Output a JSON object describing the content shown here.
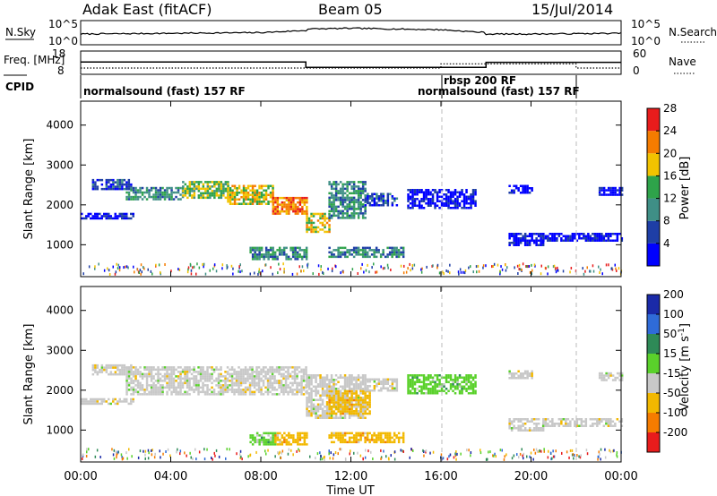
{
  "header": {
    "title": "Adak East (fitACF)",
    "beam": "Beam 05",
    "date": "15/Jul/2014"
  },
  "chart_data": [
    {
      "type": "line",
      "panel": "N.Sky / N.Search",
      "left_label": "N.Sky",
      "right_label": "N.Search",
      "left_ticks": [
        "10^5",
        "10^0"
      ],
      "right_ticks": [
        "10^5",
        "10^0"
      ],
      "x": [
        "00:00",
        "02:00",
        "04:00",
        "06:00",
        "08:00",
        "10:00",
        "12:00",
        "14:00",
        "16:00",
        "18:00",
        "20:00",
        "22:00",
        "24:00"
      ],
      "series": [
        {
          "name": "N.Sky",
          "values_log10": [
            2.0,
            2.1,
            2.2,
            2.3,
            2.4,
            3.0,
            3.2,
            3.0,
            2.8,
            2.0,
            2.0,
            2.1,
            2.2
          ]
        }
      ]
    },
    {
      "type": "line",
      "panel": "Freq / Nave",
      "left_label": "Freq. [MHz]",
      "right_label": "Nave",
      "left_ticks": [
        "18",
        "8"
      ],
      "right_ticks": [
        "60",
        "0"
      ],
      "series": [
        {
          "name": "Freq.",
          "steps": [
            {
              "from": 0.0,
              "to": 10.0,
              "value": 13.4
            },
            {
              "from": 10.0,
              "to": 18.0,
              "value": 10.4
            },
            {
              "from": 18.0,
              "to": 24.0,
              "value": 13.2
            }
          ]
        },
        {
          "name": "Nave",
          "steps": [
            {
              "from": 0.0,
              "to": 10.0,
              "value": 12
            },
            {
              "from": 10.0,
              "to": 16.0,
              "value": 12
            },
            {
              "from": 16.0,
              "to": 18.0,
              "value": 26
            },
            {
              "from": 18.0,
              "to": 22.0,
              "value": 26
            },
            {
              "from": 22.0,
              "to": 24.0,
              "value": 12
            }
          ]
        }
      ]
    },
    {
      "type": "table",
      "panel": "CPID",
      "label": "CPID",
      "segments": [
        {
          "start": 0.0,
          "end": 16.0,
          "text": "normalsound (fast) 157 RF"
        },
        {
          "start": 16.0,
          "end": 22.0,
          "text": "rbsp 200 RF"
        },
        {
          "start": 16.0,
          "end": 22.0,
          "text": "normalsound (fast) 157 RF"
        }
      ]
    },
    {
      "type": "heatmap",
      "panel": "Power",
      "ylabel": "Slant Range [km]",
      "xlabel": "Time UT",
      "xlim": [
        0,
        24
      ],
      "ylim": [
        200,
        4600
      ],
      "yticks": [
        1000,
        2000,
        3000,
        4000
      ],
      "xticks": [
        "00:00",
        "04:00",
        "08:00",
        "12:00",
        "16:00",
        "20:00",
        "00:00"
      ],
      "colorbar": {
        "label": "Power [dB]",
        "ticks": [
          4,
          8,
          12,
          16,
          20,
          24,
          28
        ],
        "colors": [
          "#0000ff",
          "#1e3ea6",
          "#3f8f86",
          "#2ea34a",
          "#f2c300",
          "#f57c00",
          "#e81c1c"
        ]
      },
      "bands": [
        {
          "t0": 0.5,
          "t1": 2.2,
          "r0": 2400,
          "r1": 2650,
          "level": 1
        },
        {
          "t0": 0.0,
          "t1": 2.3,
          "r0": 1650,
          "r1": 1800,
          "level": 0
        },
        {
          "t0": 2.0,
          "t1": 4.5,
          "r0": 2150,
          "r1": 2450,
          "level": 2
        },
        {
          "t0": 4.5,
          "t1": 6.5,
          "r0": 2200,
          "r1": 2600,
          "level": 3
        },
        {
          "t0": 6.5,
          "t1": 8.5,
          "r0": 2000,
          "r1": 2500,
          "level": 4
        },
        {
          "t0": 8.5,
          "t1": 10.0,
          "r0": 1800,
          "r1": 2200,
          "level": 5
        },
        {
          "t0": 10.0,
          "t1": 11.0,
          "r0": 1300,
          "r1": 1800,
          "level": 4
        },
        {
          "t0": 11.0,
          "t1": 12.6,
          "r0": 1700,
          "r1": 2600,
          "level": 2
        },
        {
          "t0": 12.6,
          "t1": 14.0,
          "r0": 2000,
          "r1": 2300,
          "level": 1
        },
        {
          "t0": 7.5,
          "t1": 10.0,
          "r0": 650,
          "r1": 950,
          "level": 2
        },
        {
          "t0": 11.0,
          "t1": 14.3,
          "r0": 700,
          "r1": 950,
          "level": 2
        },
        {
          "t0": 14.5,
          "t1": 17.5,
          "r0": 1900,
          "r1": 2400,
          "level": 0
        },
        {
          "t0": 19.0,
          "t1": 20.5,
          "r0": 1000,
          "r1": 1300,
          "level": 0
        },
        {
          "t0": 20.5,
          "t1": 24.0,
          "r0": 1100,
          "r1": 1300,
          "level": 0
        },
        {
          "t0": 19.0,
          "t1": 20.0,
          "r0": 2300,
          "r1": 2500,
          "level": 0
        },
        {
          "t0": 23.0,
          "t1": 24.0,
          "r0": 2250,
          "r1": 2450,
          "level": 0
        }
      ]
    },
    {
      "type": "heatmap",
      "panel": "Velocity",
      "ylabel": "Slant Range [km]",
      "xlabel": "Time UT",
      "xlim": [
        0,
        24
      ],
      "ylim": [
        200,
        4600
      ],
      "yticks": [
        1000,
        2000,
        3000,
        4000
      ],
      "xticks": [
        "00:00",
        "04:00",
        "08:00",
        "12:00",
        "16:00",
        "20:00",
        "00:00"
      ],
      "colorbar": {
        "label": "Velocity [m s^-1]",
        "ticks": [
          "200",
          "100",
          "50",
          "15",
          "-15",
          "-50",
          "-100",
          "-200"
        ],
        "colors": [
          "#1a2aa8",
          "#2f6bd8",
          "#2e8a57",
          "#5ad12b",
          "#c8c8c8",
          "#f2b800",
          "#f57c00",
          "#e81c1c"
        ]
      },
      "bands": [
        {
          "t0": 0.5,
          "t1": 2.2,
          "r0": 2400,
          "r1": 2650,
          "vel": "gray"
        },
        {
          "t0": 0.0,
          "t1": 2.3,
          "r0": 1650,
          "r1": 1800,
          "vel": "gray"
        },
        {
          "t0": 2.0,
          "t1": 10.0,
          "r0": 1900,
          "r1": 2600,
          "vel": "gray"
        },
        {
          "t0": 10.0,
          "t1": 12.6,
          "r0": 1300,
          "r1": 2400,
          "vel": "gray"
        },
        {
          "t0": 11.0,
          "t1": 12.8,
          "r0": 1400,
          "r1": 2000,
          "vel": "yellow"
        },
        {
          "t0": 12.6,
          "t1": 14.0,
          "r0": 2000,
          "r1": 2300,
          "vel": "gray"
        },
        {
          "t0": 7.5,
          "t1": 8.6,
          "r0": 650,
          "r1": 950,
          "vel": "green"
        },
        {
          "t0": 8.6,
          "t1": 10.0,
          "r0": 650,
          "r1": 950,
          "vel": "yellow"
        },
        {
          "t0": 11.0,
          "t1": 14.3,
          "r0": 700,
          "r1": 950,
          "vel": "yellow"
        },
        {
          "t0": 14.5,
          "t1": 17.5,
          "r0": 1900,
          "r1": 2400,
          "vel": "green"
        },
        {
          "t0": 19.0,
          "t1": 20.5,
          "r0": 1000,
          "r1": 1300,
          "vel": "gray"
        },
        {
          "t0": 20.5,
          "t1": 24.0,
          "r0": 1100,
          "r1": 1300,
          "vel": "gray"
        },
        {
          "t0": 19.0,
          "t1": 20.0,
          "r0": 2300,
          "r1": 2500,
          "vel": "gray"
        },
        {
          "t0": 23.0,
          "t1": 24.0,
          "r0": 2250,
          "r1": 2450,
          "vel": "gray"
        }
      ]
    }
  ]
}
